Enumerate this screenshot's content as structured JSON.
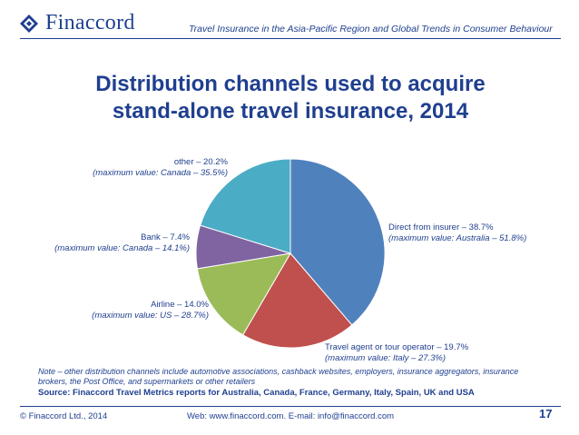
{
  "brand": {
    "name": "Finaccord"
  },
  "header": {
    "report_title": "Travel Insurance in the Asia-Pacific Region and Global Trends in Consumer Behaviour"
  },
  "slide": {
    "title_line1": "Distribution channels used to acquire",
    "title_line2": "stand-alone travel insurance, 2014"
  },
  "chart_data": {
    "type": "pie",
    "title": "Distribution channels used to acquire stand-alone travel insurance, 2014",
    "slices": [
      {
        "label": "Direct from insurer  – 38.7%",
        "max_note": "(maximum value: Australia – 51.8%)",
        "value": 38.7,
        "color": "#4f81bd"
      },
      {
        "label": "Travel agent or tour operator – 19.7%",
        "max_note": "(maximum value: Italy – 27.3%)",
        "value": 19.7,
        "color": "#c0504d"
      },
      {
        "label": "Airline – 14.0%",
        "max_note": "(maximum value: US – 28.7%)",
        "value": 14.0,
        "color": "#9bbb59"
      },
      {
        "label": "Bank – 7.4%",
        "max_note": "(maximum value: Canada – 14.1%)",
        "value": 7.4,
        "color": "#8064a2"
      },
      {
        "label": "other – 20.2%",
        "max_note": "(maximum value: Canada – 35.5%)",
        "value": 20.2,
        "color": "#4bacc6"
      }
    ],
    "start_angle_deg": 0,
    "direction": "clockwise"
  },
  "note": "Note – other distribution channels include automotive associations, cashback websites, employers, insurance aggregators, insurance brokers, the Post Office, and supermarkets or other retailers",
  "source": "Source: Finaccord Travel Metrics reports for Australia, Canada, France, Germany, Italy, Spain, UK and USA",
  "footer": {
    "copyright": "© Finaccord Ltd., 2014",
    "contact": "Web: www.finaccord.com. E-mail: info@finaccord.com",
    "page_number": "17"
  }
}
